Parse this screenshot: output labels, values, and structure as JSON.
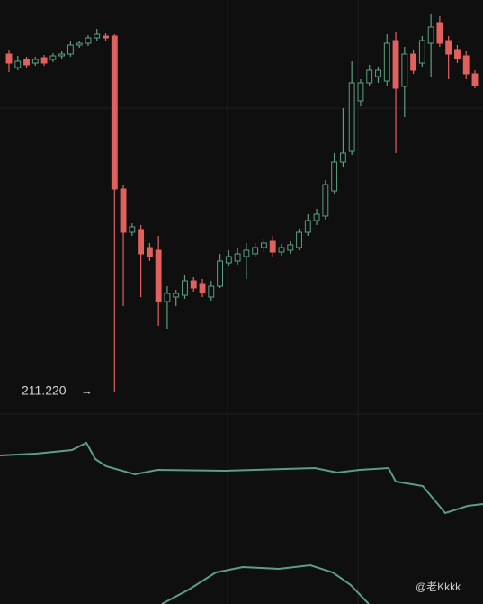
{
  "chart_data": {
    "type": "candlestick",
    "annotation": "211.220",
    "watermark": "@老Kkkk",
    "ylim": [
      209.97,
      232.97
    ],
    "up_color": "#5c9e7f",
    "down_color": "#e0615d",
    "open": [
      229.97,
      229.22,
      229.67,
      229.47,
      229.77,
      229.67,
      229.87,
      229.97,
      230.47,
      230.57,
      230.87,
      230.97,
      230.97,
      222.47,
      220.07,
      220.22,
      219.22,
      219.07,
      216.22,
      216.47,
      216.57,
      217.37,
      217.22,
      216.47,
      217.07,
      218.37,
      218.47,
      218.72,
      218.87,
      219.22,
      219.57,
      218.97,
      219.07,
      219.22,
      220.07,
      220.72,
      220.97,
      222.37,
      223.97,
      224.57,
      227.37,
      228.37,
      228.72,
      228.47,
      230.72,
      228.17,
      229.97,
      229.47,
      230.57,
      231.72,
      230.72,
      230.22,
      229.87,
      228.87
    ],
    "high": [
      230.22,
      229.87,
      229.82,
      229.82,
      229.92,
      230.02,
      230.12,
      230.72,
      230.72,
      231.02,
      231.37,
      231.12,
      231.07,
      222.72,
      220.57,
      220.47,
      219.47,
      219.87,
      217.07,
      216.87,
      217.72,
      217.57,
      217.47,
      217.37,
      218.87,
      219.07,
      219.22,
      219.47,
      219.47,
      219.72,
      219.87,
      219.42,
      219.57,
      220.27,
      221.07,
      221.37,
      222.97,
      224.47,
      226.97,
      229.57,
      228.57,
      229.37,
      229.27,
      231.07,
      231.22,
      230.37,
      230.22,
      230.97,
      232.22,
      232.07,
      230.97,
      230.47,
      230.12,
      229.07
    ],
    "low": [
      228.97,
      229.07,
      229.22,
      229.32,
      229.32,
      229.52,
      229.72,
      229.82,
      230.32,
      230.42,
      230.72,
      230.72,
      211.22,
      215.97,
      219.87,
      216.47,
      218.47,
      214.87,
      214.72,
      215.97,
      216.37,
      216.77,
      216.47,
      216.27,
      216.97,
      218.17,
      218.27,
      217.47,
      218.67,
      218.97,
      218.72,
      218.77,
      218.87,
      219.07,
      219.87,
      220.47,
      220.77,
      222.22,
      223.72,
      224.37,
      227.07,
      228.17,
      228.37,
      228.22,
      224.47,
      226.47,
      228.87,
      229.27,
      228.72,
      230.37,
      228.57,
      229.47,
      228.57,
      228.07
    ],
    "close": [
      229.47,
      229.57,
      229.37,
      229.67,
      229.47,
      229.87,
      229.97,
      230.47,
      230.57,
      230.87,
      231.07,
      230.87,
      222.47,
      220.07,
      220.37,
      218.87,
      218.72,
      216.22,
      216.67,
      216.67,
      217.37,
      216.97,
      216.72,
      217.07,
      218.47,
      218.72,
      218.87,
      219.07,
      219.22,
      219.47,
      218.97,
      219.22,
      219.37,
      220.07,
      220.72,
      221.07,
      222.72,
      223.97,
      224.47,
      228.37,
      228.37,
      229.07,
      229.07,
      230.57,
      228.07,
      229.97,
      229.07,
      230.72,
      231.47,
      230.57,
      229.97,
      229.72,
      228.87,
      228.22
    ]
  }
}
